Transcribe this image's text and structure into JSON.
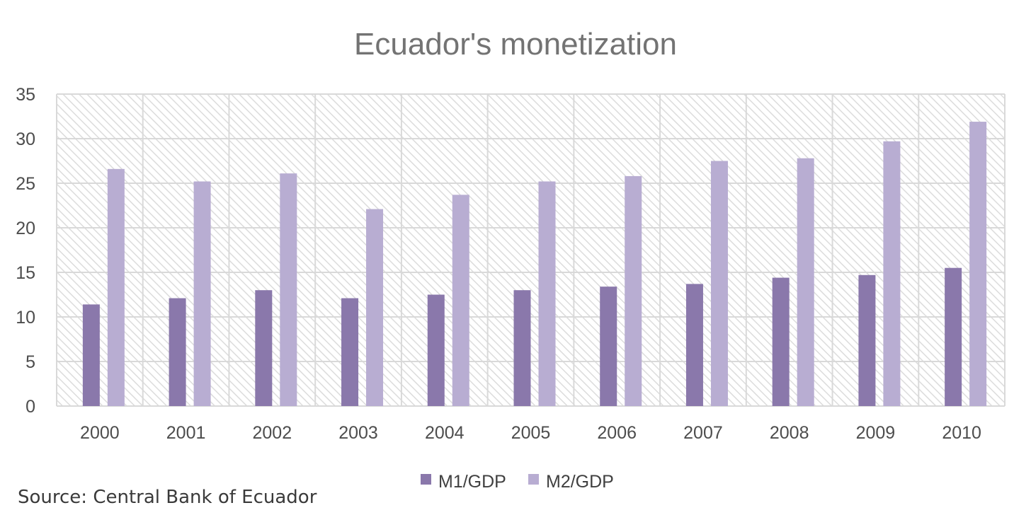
{
  "chart_data": {
    "type": "bar",
    "title": "Ecuador's monetization",
    "xlabel": "",
    "ylabel": "",
    "categories": [
      "2000",
      "2001",
      "2002",
      "2003",
      "2004",
      "2005",
      "2006",
      "2007",
      "2008",
      "2009",
      "2010"
    ],
    "series": [
      {
        "name": "M1/GDP",
        "color": "#8a78ab",
        "values": [
          11.4,
          12.1,
          13.0,
          12.1,
          12.5,
          13.0,
          13.4,
          13.7,
          14.4,
          14.7,
          15.5
        ]
      },
      {
        "name": "M2/GDP",
        "color": "#b8add2",
        "values": [
          26.6,
          25.2,
          26.1,
          22.1,
          23.7,
          25.2,
          25.8,
          27.5,
          27.8,
          29.7,
          31.9
        ]
      }
    ],
    "ylim": [
      0,
      35
    ],
    "yticks": [
      0,
      5,
      10,
      15,
      20,
      25,
      30,
      35
    ],
    "grid": true,
    "legend_position": "bottom"
  },
  "source": "Source: Central Bank of Ecuador"
}
